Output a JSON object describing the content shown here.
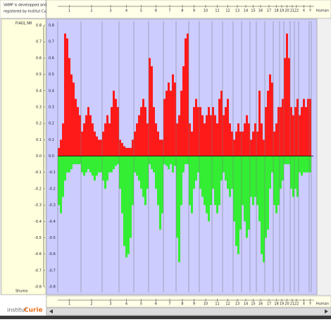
{
  "info": {
    "lines": [
      "VAMP is developped and",
      "registered by Institut Curie"
    ]
  },
  "logo": {
    "prefix": "institut",
    "name": "Curie"
  },
  "chart_data": {
    "type": "bar",
    "y_label": "FrAGL NR",
    "bottom_label": "Shumo",
    "organism": "Human",
    "gain_color": "#ff1a1a",
    "loss_color": "#33ee33",
    "ylim": [
      -0.8,
      0.8
    ],
    "yticks": [
      0.8,
      0.7,
      0.6,
      0.5,
      0.4,
      0.3,
      0.2,
      0.1,
      {
        "value": 0,
        "label": "0.0"
      },
      -0.1,
      -0.2,
      -0.3,
      -0.4,
      -0.5,
      -0.6,
      -0.7,
      -0.8
    ],
    "chromosomes": [
      {
        "name": "1",
        "gain": [
          0.05,
          0.1,
          0.2,
          0.75,
          0.72,
          0.6,
          0.5,
          0.45,
          0.35,
          0.3,
          0.25
        ],
        "loss": [
          -0.3,
          -0.35,
          -0.25,
          -0.15,
          -0.1,
          -0.1,
          -0.08,
          -0.05,
          -0.05,
          -0.05,
          -0.05
        ]
      },
      {
        "name": "2",
        "gain": [
          0.15,
          0.2,
          0.25,
          0.3,
          0.25,
          0.2,
          0.15,
          0.12,
          0.1,
          0.1
        ],
        "loss": [
          -0.1,
          -0.12,
          -0.1,
          -0.08,
          -0.1,
          -0.12,
          -0.15,
          -0.12,
          -0.1,
          -0.1
        ]
      },
      {
        "name": "3",
        "gain": [
          0.15,
          0.2,
          0.25,
          0.2,
          0.3,
          0.4,
          0.35,
          0.3
        ],
        "loss": [
          -0.15,
          -0.2,
          -0.15,
          -0.1,
          -0.1,
          -0.08,
          -0.06,
          -0.05
        ]
      },
      {
        "name": "4",
        "gain": [
          0.1,
          0.08,
          0.06,
          0.05,
          0.05,
          0.05,
          0.1
        ],
        "loss": [
          -0.2,
          -0.35,
          -0.55,
          -0.62,
          -0.6,
          -0.5,
          -0.3
        ]
      },
      {
        "name": "5",
        "gain": [
          0.15,
          0.2,
          0.25,
          0.3,
          0.35,
          0.3,
          0.2
        ],
        "loss": [
          -0.1,
          -0.12,
          -0.15,
          -0.2,
          -0.25,
          -0.3,
          -0.2
        ]
      },
      {
        "name": "6",
        "gain": [
          0.6,
          0.55,
          0.3,
          0.2,
          0.15,
          0.1,
          0.1
        ],
        "loss": [
          -0.05,
          -0.08,
          -0.1,
          -0.2,
          -0.3,
          -0.45,
          -0.35
        ]
      },
      {
        "name": "7",
        "gain": [
          0.35,
          0.4,
          0.45,
          0.4,
          0.5,
          0.45
        ],
        "loss": [
          -0.05,
          -0.06,
          -0.08,
          -0.05,
          -0.1,
          -0.06
        ]
      },
      {
        "name": "8",
        "gain": [
          0.2,
          0.25,
          0.4,
          0.55,
          0.72,
          0.75
        ],
        "loss": [
          -0.5,
          -0.65,
          -0.3,
          -0.1,
          -0.05,
          -0.05
        ]
      },
      {
        "name": "9",
        "gain": [
          0.2,
          0.15,
          0.3,
          0.35,
          0.3
        ],
        "loss": [
          -0.3,
          -0.35,
          -0.2,
          -0.15,
          -0.1
        ]
      },
      {
        "name": "10",
        "gain": [
          0.3,
          0.25,
          0.2,
          0.25,
          0.3,
          0.25
        ],
        "loss": [
          -0.2,
          -0.25,
          -0.3,
          -0.35,
          -0.4,
          -0.3
        ]
      },
      {
        "name": "11",
        "gain": [
          0.3,
          0.25,
          0.2,
          0.35,
          0.4
        ],
        "loss": [
          -0.2,
          -0.3,
          -0.35,
          -0.3,
          -0.15
        ]
      },
      {
        "name": "12",
        "gain": [
          0.25,
          0.3,
          0.35,
          0.2,
          0.15
        ],
        "loss": [
          -0.1,
          -0.15,
          -0.2,
          -0.25,
          -0.2
        ]
      },
      {
        "name": "13",
        "gain": [
          0.1,
          0.15,
          0.2,
          0.15
        ],
        "loss": [
          -0.4,
          -0.55,
          -0.6,
          -0.45
        ]
      },
      {
        "name": "14",
        "gain": [
          0.15,
          0.2,
          0.25,
          0.2
        ],
        "loss": [
          -0.3,
          -0.4,
          -0.5,
          -0.45
        ]
      },
      {
        "name": "15",
        "gain": [
          0.1,
          0.15,
          0.2
        ],
        "loss": [
          -0.25,
          -0.3,
          -0.25
        ]
      },
      {
        "name": "16",
        "gain": [
          0.15,
          0.4,
          0.2,
          0.1
        ],
        "loss": [
          -0.3,
          -0.4,
          -0.6,
          -0.65
        ]
      },
      {
        "name": "17",
        "gain": [
          0.3,
          0.4,
          0.5,
          0.45
        ],
        "loss": [
          -0.5,
          -0.45,
          -0.2,
          -0.1
        ]
      },
      {
        "name": "18",
        "gain": [
          0.15,
          0.2,
          0.3
        ],
        "loss": [
          -0.3,
          -0.35,
          -0.3
        ]
      },
      {
        "name": "19",
        "gain": [
          0.3,
          0.35
        ],
        "loss": [
          -0.2,
          -0.15
        ]
      },
      {
        "name": "20",
        "gain": [
          0.6,
          0.75,
          0.6
        ],
        "loss": [
          -0.05,
          -0.05,
          -0.05
        ]
      },
      {
        "name": "21",
        "gain": [
          0.3,
          0.25
        ],
        "loss": [
          -0.2,
          -0.25
        ]
      },
      {
        "name": "22",
        "gain": [
          0.3,
          0.35
        ],
        "loss": [
          -0.2,
          -0.25
        ]
      },
      {
        "name": "X",
        "gain": [
          0.25,
          0.3,
          0.35,
          0.3,
          0.35
        ],
        "loss": [
          -0.1,
          -0.12,
          -0.1,
          -0.1,
          -0.1
        ]
      },
      {
        "name": "Y",
        "gain": [
          0.35
        ],
        "loss": [
          -0.1
        ]
      }
    ]
  }
}
